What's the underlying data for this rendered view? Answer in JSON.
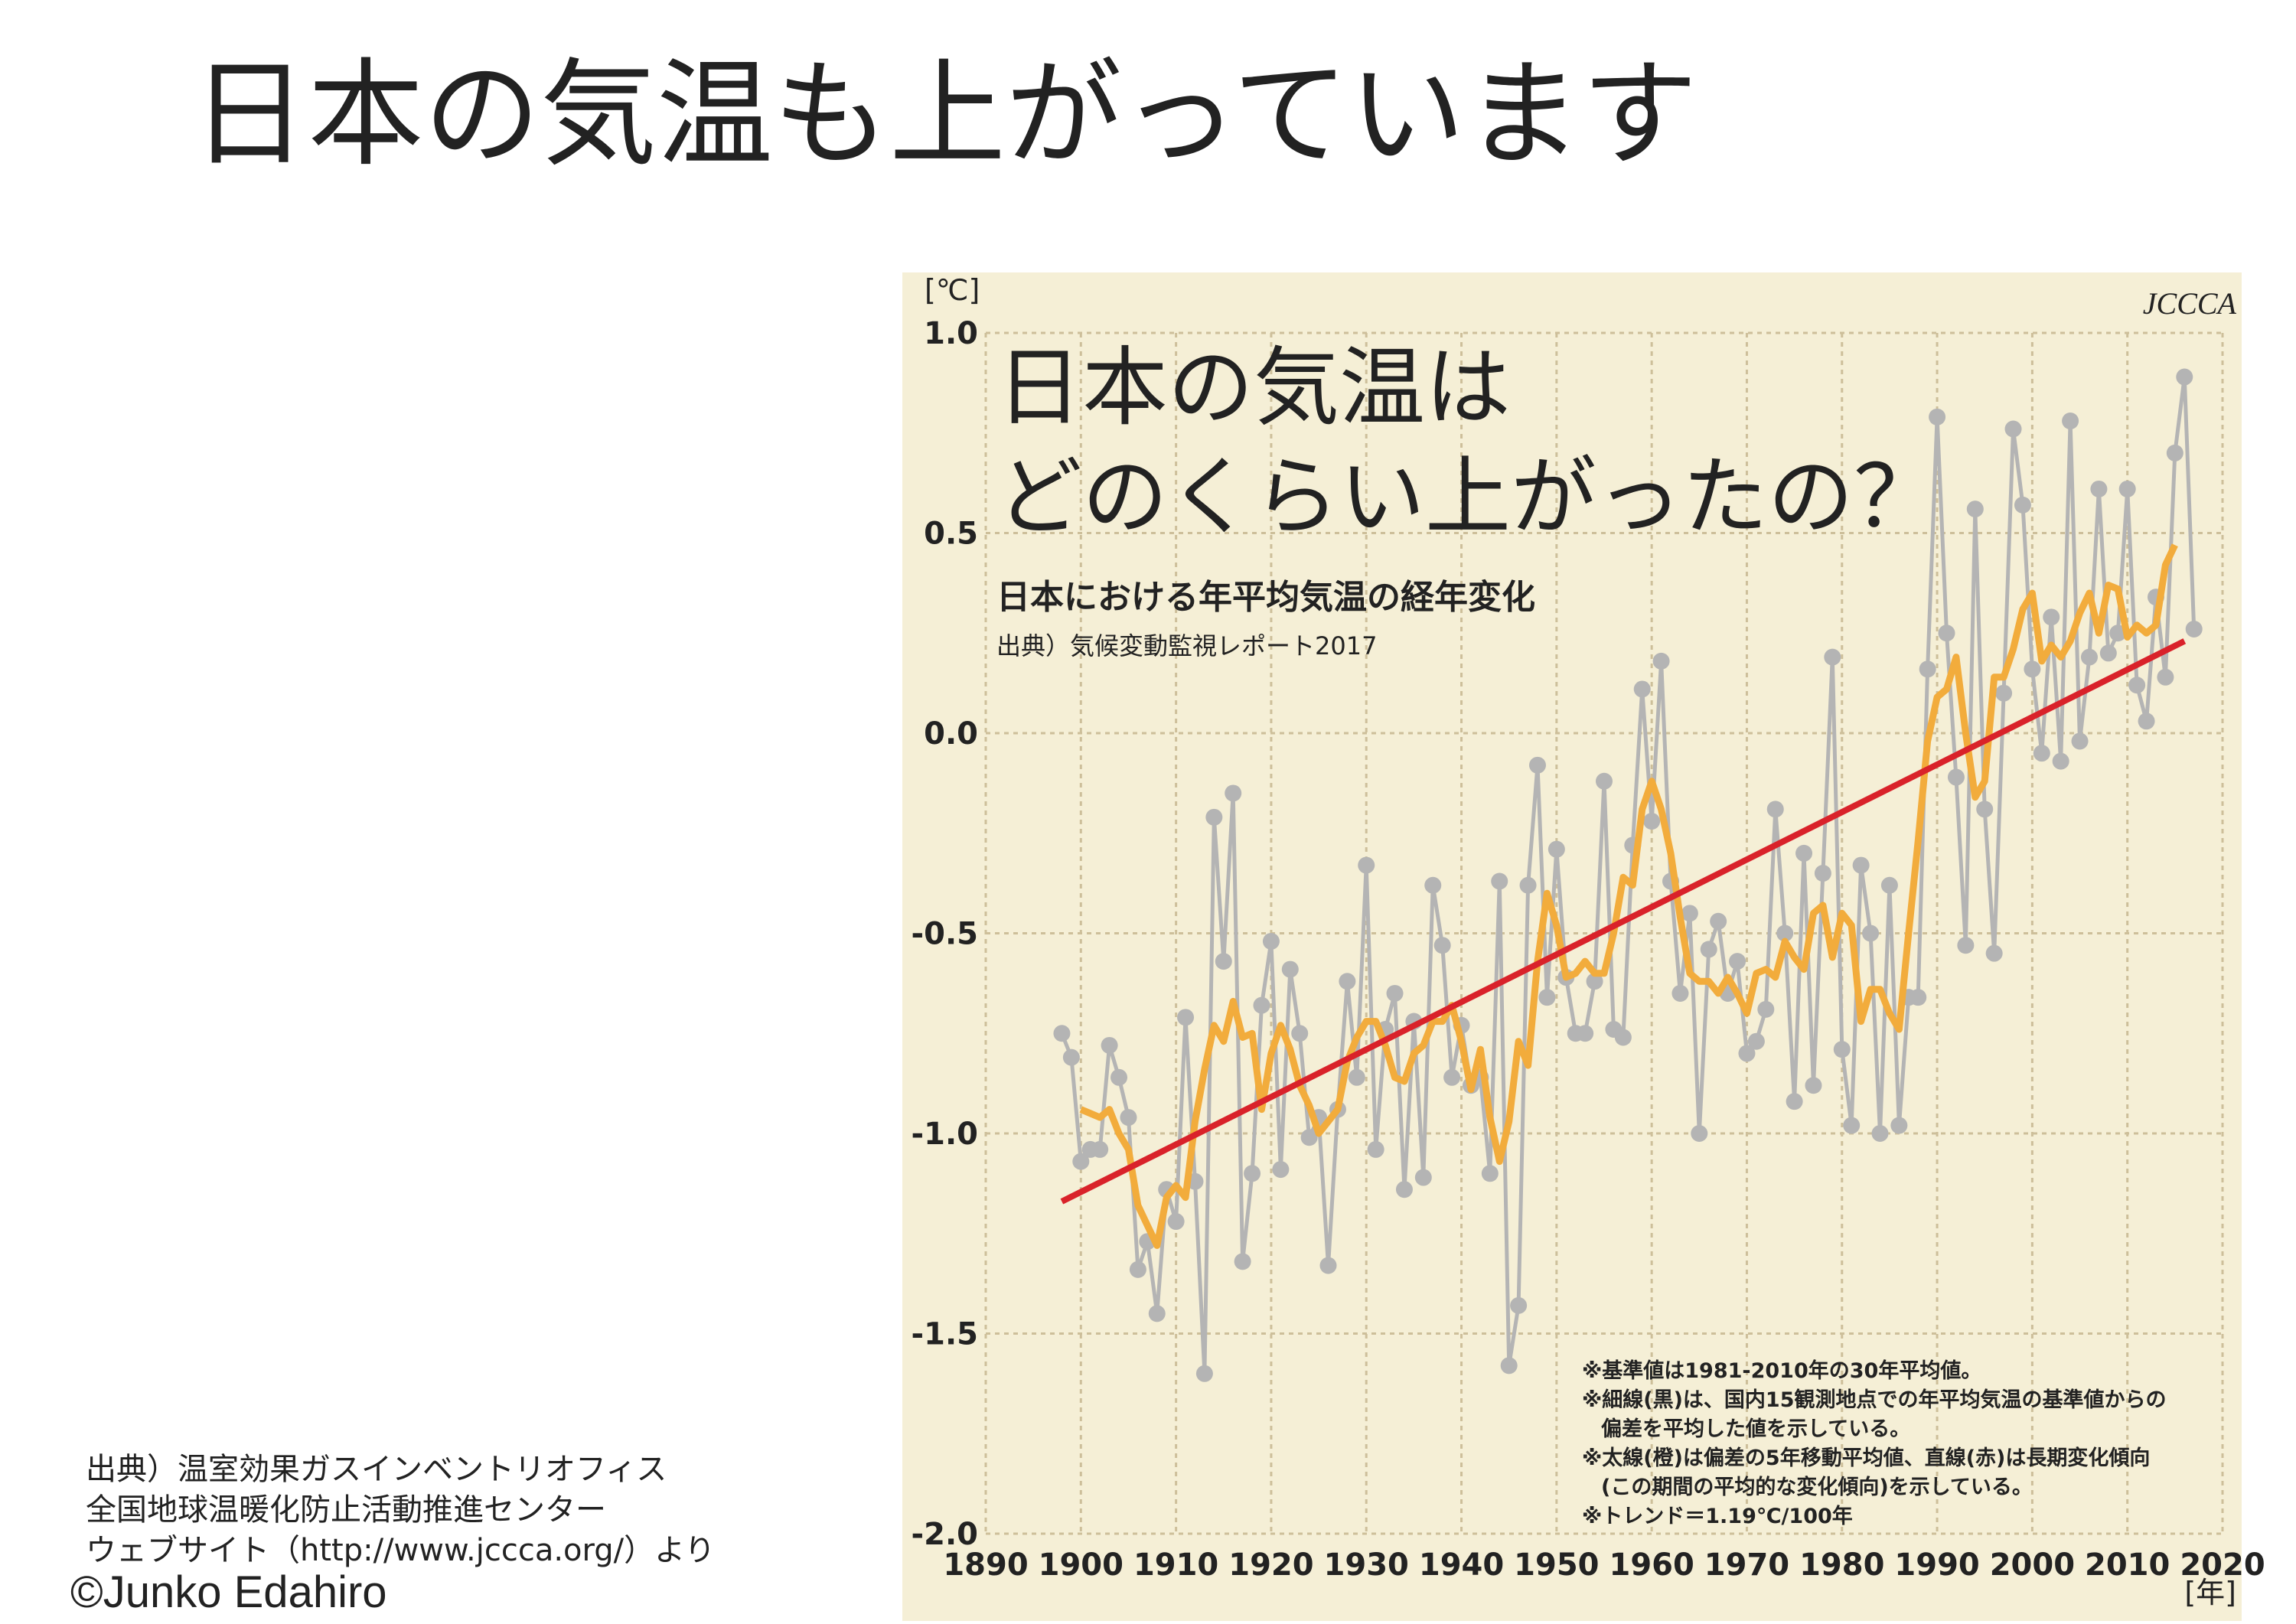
{
  "slide": {
    "title": "日本の気温も上がっています",
    "source": [
      "出典）温室効果ガスインベントリオフィス",
      "全国地球温暖化防止活動推進センター",
      "ウェブサイト（http://www.jccca.org/）より"
    ],
    "copyright": "©Junko Edahiro"
  },
  "chart_data": {
    "type": "line",
    "title": [
      "日本の気温は",
      "どのくらい上がったの？"
    ],
    "subtitle": "日本における年平均気温の経年変化",
    "source": "出典）気候変動監視レポート2017",
    "logo": "JCCCA",
    "y_unit": "[℃]",
    "x_unit": "[年]",
    "notes": [
      "※基準値は1981-2010年の30年平均値。",
      "※細線(黒)は、国内15観測地点での年平均気温の基準値からの",
      "偏差を平均した値を示している。",
      "※太線(橙)は偏差の5年移動平均値、直線(赤)は長期変化傾向",
      "(この期間の平均的な変化傾向)を示している。",
      "※トレンド＝1.19℃/100年"
    ],
    "xlim": [
      1890,
      2020
    ],
    "xticks": [
      1890,
      1900,
      1910,
      1920,
      1930,
      1940,
      1950,
      1960,
      1970,
      1980,
      1990,
      2000,
      2010,
      2020
    ],
    "ylim": [
      -2.0,
      1.0
    ],
    "yticks": [
      {
        "value": 1.0,
        "label": "1.0"
      },
      0.5,
      {
        "value": 0.0,
        "label": "0.0"
      },
      -0.5,
      {
        "value": -1.0,
        "label": "-1.0"
      },
      -1.5,
      {
        "value": -2.0,
        "label": "-2.0"
      }
    ],
    "grid": true,
    "series": [
      {
        "color": "#b4b4b4",
        "marker": "circle",
        "x": [
          1898,
          1899,
          1900,
          1901,
          1902,
          1903,
          1904,
          1905,
          1906,
          1907,
          1908,
          1909,
          1910,
          1911,
          1912,
          1913,
          1914,
          1915,
          1916,
          1917,
          1918,
          1919,
          1920,
          1921,
          1922,
          1923,
          1924,
          1925,
          1926,
          1927,
          1928,
          1929,
          1930,
          1931,
          1932,
          1933,
          1934,
          1935,
          1936,
          1937,
          1938,
          1939,
          1940,
          1941,
          1942,
          1943,
          1944,
          1945,
          1946,
          1947,
          1948,
          1949,
          1950,
          1951,
          1952,
          1953,
          1954,
          1955,
          1956,
          1957,
          1958,
          1959,
          1960,
          1961,
          1962,
          1963,
          1964,
          1965,
          1966,
          1967,
          1968,
          1969,
          1970,
          1971,
          1972,
          1973,
          1974,
          1975,
          1976,
          1977,
          1978,
          1979,
          1980,
          1981,
          1982,
          1983,
          1984,
          1985,
          1986,
          1987,
          1988,
          1989,
          1990,
          1991,
          1992,
          1993,
          1994,
          1995,
          1996,
          1997,
          1998,
          1999,
          2000,
          2001,
          2002,
          2003,
          2004,
          2005,
          2006,
          2007,
          2008,
          2009,
          2010,
          2011,
          2012,
          2013,
          2014,
          2015,
          2016,
          2017
        ],
        "values": [
          -0.75,
          -0.81,
          -1.07,
          -1.04,
          -1.04,
          -0.78,
          -0.86,
          -0.96,
          -1.34,
          -1.27,
          -1.45,
          -1.14,
          -1.22,
          -0.71,
          -1.12,
          -1.6,
          -0.21,
          -0.57,
          -0.15,
          -1.32,
          -1.1,
          -0.68,
          -0.52,
          -1.09,
          -0.59,
          -0.75,
          -1.01,
          -0.96,
          -1.33,
          -0.94,
          -0.62,
          -0.86,
          -0.33,
          -1.04,
          -0.74,
          -0.65,
          -1.14,
          -0.72,
          -1.11,
          -0.38,
          -0.53,
          -0.86,
          -0.73,
          -0.88,
          -0.86,
          -1.1,
          -0.37,
          -1.58,
          -1.43,
          -0.38,
          -0.08,
          -0.66,
          -0.29,
          -0.61,
          -0.75,
          -0.75,
          -0.62,
          -0.12,
          -0.74,
          -0.76,
          -0.28,
          0.11,
          -0.22,
          0.18,
          -0.37,
          -0.65,
          -0.45,
          -1.0,
          -0.54,
          -0.47,
          -0.65,
          -0.57,
          -0.8,
          -0.77,
          -0.69,
          -0.19,
          -0.5,
          -0.92,
          -0.3,
          -0.88,
          -0.35,
          0.19,
          -0.79,
          -0.98,
          -0.33,
          -0.5,
          -1.0,
          -0.38,
          -0.98,
          -0.66,
          -0.66,
          0.16,
          0.79,
          0.25,
          -0.11,
          -0.53,
          0.56,
          -0.19,
          -0.55,
          0.1,
          0.76,
          0.57,
          0.16,
          -0.05,
          0.29,
          -0.07,
          0.78,
          -0.02,
          0.19,
          0.61,
          0.2,
          0.25,
          0.61,
          0.12,
          0.03,
          0.34,
          0.14,
          0.7,
          0.89,
          0.26
        ]
      },
      {
        "color": "#f2ac3c",
        "x": [
          1900,
          1901,
          1902,
          1903,
          1904,
          1905,
          1906,
          1907,
          1908,
          1909,
          1910,
          1911,
          1912,
          1913,
          1914,
          1915,
          1916,
          1917,
          1918,
          1919,
          1920,
          1921,
          1922,
          1923,
          1924,
          1925,
          1926,
          1927,
          1928,
          1929,
          1930,
          1931,
          1932,
          1933,
          1934,
          1935,
          1936,
          1937,
          1938,
          1939,
          1940,
          1941,
          1942,
          1943,
          1944,
          1945,
          1946,
          1947,
          1948,
          1949,
          1950,
          1951,
          1952,
          1953,
          1954,
          1955,
          1956,
          1957,
          1958,
          1959,
          1960,
          1961,
          1962,
          1963,
          1964,
          1965,
          1966,
          1967,
          1968,
          1969,
          1970,
          1971,
          1972,
          1973,
          1974,
          1975,
          1976,
          1977,
          1978,
          1979,
          1980,
          1981,
          1982,
          1983,
          1984,
          1985,
          1986,
          1987,
          1988,
          1989,
          1990,
          1991,
          1992,
          1993,
          1994,
          1995,
          1996,
          1997,
          1998,
          1999,
          2000,
          2001,
          2002,
          2003,
          2004,
          2005,
          2006,
          2007,
          2008,
          2009,
          2010,
          2011,
          2012,
          2013,
          2014,
          2015
        ],
        "values": [
          -0.94,
          -0.95,
          -0.96,
          -0.94,
          -1.0,
          -1.04,
          -1.18,
          -1.23,
          -1.28,
          -1.16,
          -1.13,
          -1.16,
          -0.97,
          -0.84,
          -0.73,
          -0.77,
          -0.67,
          -0.76,
          -0.75,
          -0.94,
          -0.8,
          -0.73,
          -0.79,
          -0.88,
          -0.93,
          -1.0,
          -0.97,
          -0.94,
          -0.82,
          -0.76,
          -0.72,
          -0.72,
          -0.78,
          -0.86,
          -0.87,
          -0.8,
          -0.78,
          -0.72,
          -0.72,
          -0.68,
          -0.77,
          -0.89,
          -0.79,
          -0.96,
          -1.07,
          -0.97,
          -0.77,
          -0.83,
          -0.57,
          -0.4,
          -0.48,
          -0.61,
          -0.6,
          -0.57,
          -0.6,
          -0.6,
          -0.5,
          -0.36,
          -0.38,
          -0.19,
          -0.12,
          -0.19,
          -0.3,
          -0.46,
          -0.6,
          -0.62,
          -0.62,
          -0.65,
          -0.61,
          -0.65,
          -0.7,
          -0.6,
          -0.59,
          -0.61,
          -0.52,
          -0.56,
          -0.59,
          -0.45,
          -0.43,
          -0.56,
          -0.45,
          -0.48,
          -0.72,
          -0.64,
          -0.64,
          -0.7,
          -0.74,
          -0.5,
          -0.27,
          -0.02,
          0.09,
          0.11,
          0.19,
          0.0,
          -0.16,
          -0.12,
          0.14,
          0.14,
          0.21,
          0.31,
          0.35,
          0.18,
          0.22,
          0.19,
          0.23,
          0.3,
          0.35,
          0.25,
          0.37,
          0.36,
          0.24,
          0.27,
          0.25,
          0.27,
          0.42,
          0.47
        ]
      },
      {
        "color": "#d9222a",
        "x": [
          1898,
          2016
        ],
        "values": [
          -1.17,
          0.23
        ]
      }
    ]
  }
}
